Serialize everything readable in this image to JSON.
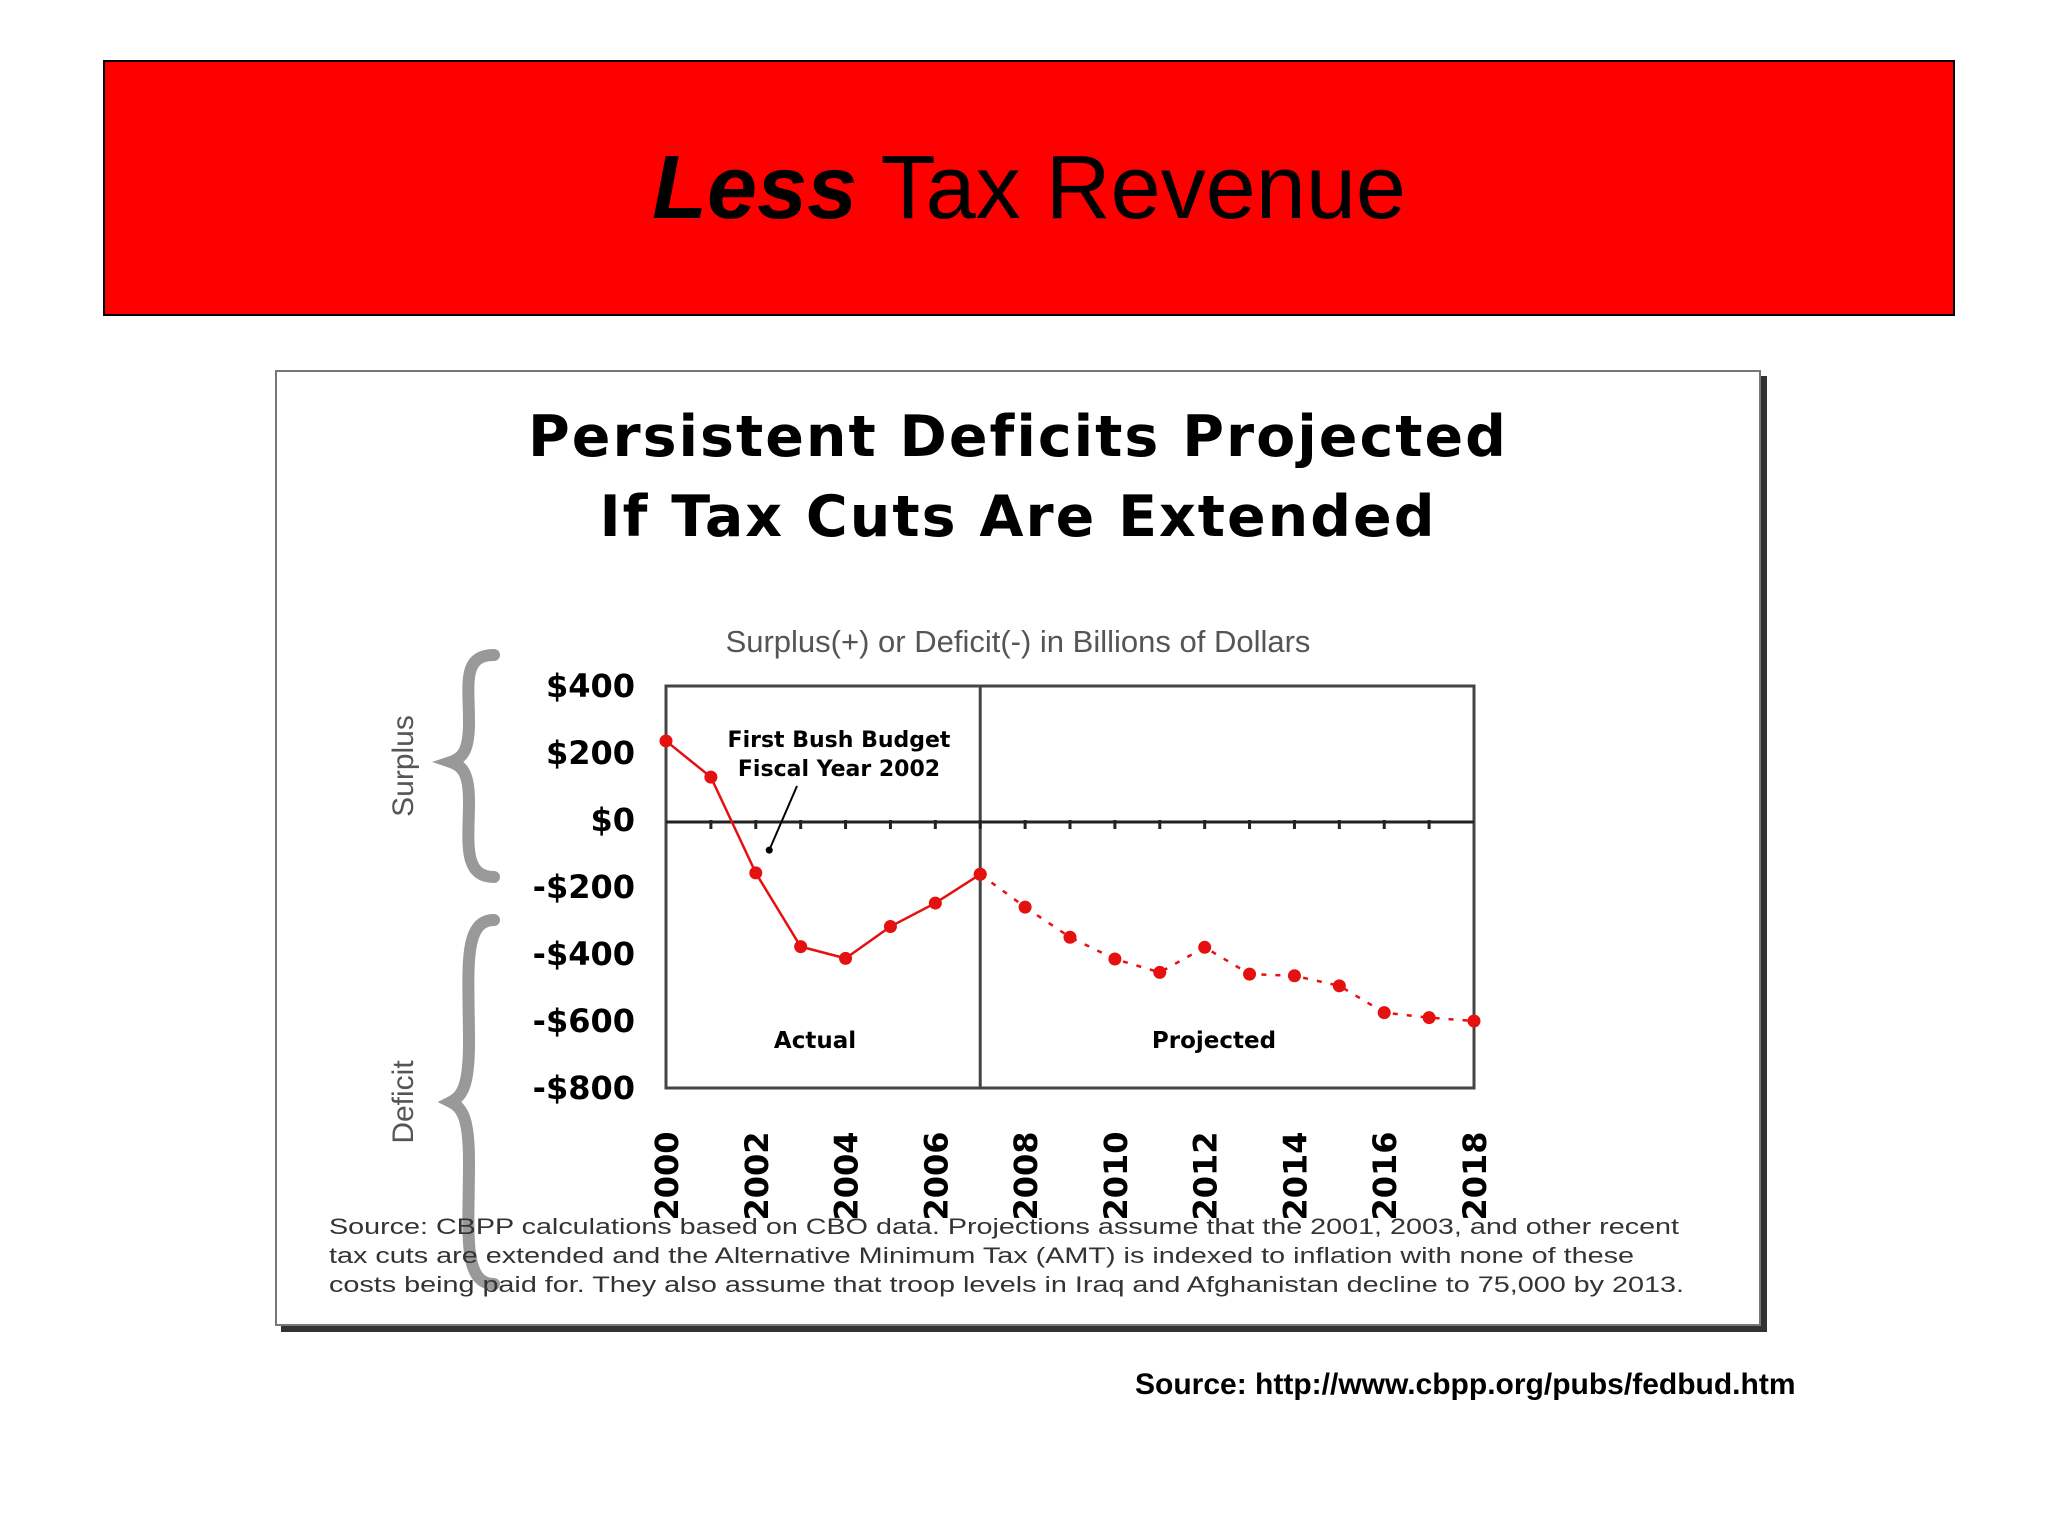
{
  "slide": {
    "title_emphasis": "Less",
    "title_rest": " Tax Revenue",
    "source": "Source: http://www.cbpp.org/pubs/fedbud.htm"
  },
  "colors": {
    "banner": "#ff0000",
    "series": "#e51010"
  },
  "chart_data": {
    "type": "line",
    "title_line1": "Persistent Deficits Projected",
    "title_line2": "If Tax Cuts Are Extended",
    "subtitle": "Surplus(+) or Deficit(-) in Billions of Dollars",
    "surplus_label": "Surplus",
    "deficit_label": "Deficit",
    "ylim": [
      -800,
      400
    ],
    "xlim": [
      2000,
      2018
    ],
    "y_ticks": [
      400,
      200,
      0,
      -200,
      -400,
      -600,
      -800
    ],
    "y_tick_labels": [
      "$400",
      "$200",
      "$0",
      "-$200",
      "-$400",
      "-$600",
      "-$800"
    ],
    "x_tick_labels": [
      "2000",
      "2002",
      "2004",
      "2006",
      "2008",
      "2010",
      "2012",
      "2014",
      "2016",
      "2018"
    ],
    "divider_x": 2007,
    "series": [
      {
        "style": "solid",
        "x": [
          2000,
          2001,
          2002,
          2003,
          2004,
          2005,
          2006,
          2007
        ],
        "y": [
          236,
          128,
          -158,
          -378,
          -413,
          -318,
          -248,
          -162
        ]
      },
      {
        "style": "dotted",
        "x": [
          2007,
          2008,
          2009,
          2010,
          2011,
          2012,
          2013,
          2014,
          2015,
          2016,
          2017,
          2018
        ],
        "y": [
          -162,
          -260,
          -350,
          -415,
          -455,
          -380,
          -460,
          -465,
          -495,
          -575,
          -590,
          -600
        ]
      }
    ],
    "annotation": {
      "line1": "First Bush Budget",
      "line2": "Fiscal Year 2002",
      "target_x": 2002.3,
      "target_y": -90
    },
    "region_labels": {
      "actual": "Actual",
      "projected": "Projected"
    },
    "footnote": [
      "Source: CBPP calculations based on CBO data.  Projections assume that the 2001, 2003, and other recent",
      "tax cuts are extended and the Alternative Minimum Tax (AMT) is indexed to inflation with none of these",
      "costs being paid for.  They also assume that troop levels in Iraq and Afghanistan decline to 75,000 by 2013."
    ]
  }
}
